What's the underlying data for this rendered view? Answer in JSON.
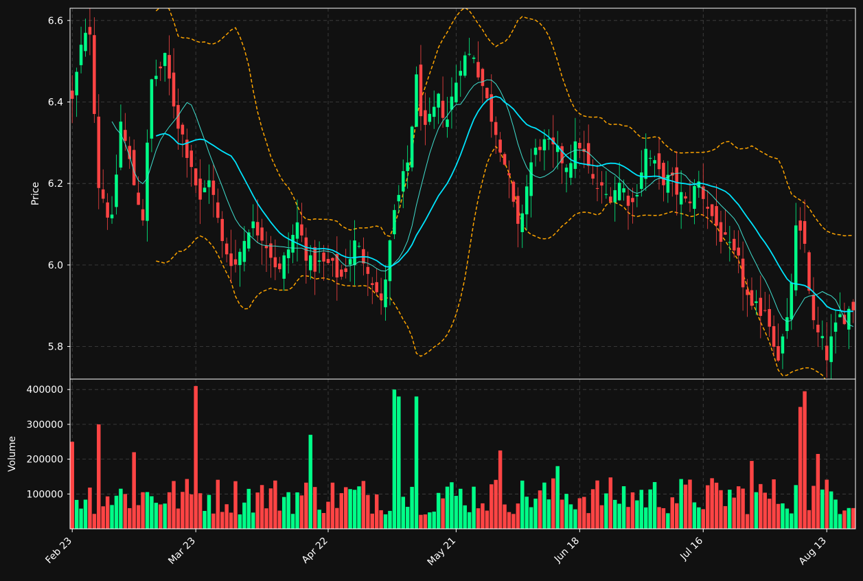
{
  "colors": {
    "background": "#111111",
    "up": "#00ff88",
    "down": "#ff4444",
    "sma_fast": "#40e0d0",
    "sma_slow": "#00e5ff",
    "bands": "#ffa500",
    "grid": "#444444",
    "axis": "#ffffff"
  },
  "chart_data": [
    {
      "type": "candlestick",
      "ylabel": "Price",
      "ylim": [
        5.72,
        6.63
      ],
      "yticks": [
        5.8,
        6.0,
        6.2,
        6.4,
        6.6
      ],
      "grid": true,
      "x": [
        "Feb 23",
        "Feb 24",
        "Feb 25",
        "Feb 26",
        "Feb 27",
        "Feb 28",
        "Mar 1",
        "Mar 2",
        "Mar 3",
        "Mar 4",
        "Mar 5",
        "Mar 6",
        "Mar 7",
        "Mar 8",
        "Mar 9",
        "Mar 10",
        "Mar 11",
        "Mar 12",
        "Mar 13",
        "Mar 14",
        "Mar 15",
        "Mar 16",
        "Mar 17",
        "Mar 18",
        "Mar 19",
        "Mar 20",
        "Mar 21",
        "Mar 22",
        "Mar 23",
        "Mar 24",
        "Mar 25",
        "Mar 26",
        "Mar 27",
        "Mar 28",
        "Mar 29",
        "Mar 30",
        "Mar 31",
        "Apr 1",
        "Apr 2",
        "Apr 3",
        "Apr 4",
        "Apr 5",
        "Apr 6",
        "Apr 7",
        "Apr 8",
        "Apr 9",
        "Apr 10",
        "Apr 11",
        "Apr 12",
        "Apr 13",
        "Apr 14",
        "Apr 15",
        "Apr 16",
        "Apr 17",
        "Apr 18",
        "Apr 19",
        "Apr 20",
        "Apr 21",
        "Apr 22",
        "Apr 23",
        "Apr 24",
        "Apr 25",
        "Apr 26",
        "Apr 27",
        "Apr 28",
        "Apr 29",
        "Apr 30",
        "May 1",
        "May 2",
        "May 3",
        "May 4",
        "May 5",
        "May 6",
        "May 7",
        "May 8",
        "May 9",
        "May 10",
        "May 11",
        "May 12",
        "May 13",
        "May 14",
        "May 15",
        "May 16",
        "May 17",
        "May 18",
        "May 19",
        "May 20",
        "May 21",
        "May 22",
        "May 23",
        "May 24",
        "May 25",
        "May 26",
        "May 27",
        "May 28",
        "May 29",
        "May 30",
        "May 31",
        "Jun 1",
        "Jun 2",
        "Jun 3",
        "Jun 4",
        "Jun 5",
        "Jun 6",
        "Jun 7",
        "Jun 8",
        "Jun 9",
        "Jun 10",
        "Jun 11",
        "Jun 12",
        "Jun 13",
        "Jun 14",
        "Jun 15",
        "Jun 16",
        "Jun 17",
        "Jun 18",
        "Jun 19",
        "Jun 20",
        "Jun 21",
        "Jun 22",
        "Jun 23",
        "Jun 24",
        "Jun 25",
        "Jun 26",
        "Jun 27",
        "Jun 28",
        "Jun 29",
        "Jun 30",
        "Jul 1",
        "Jul 2",
        "Jul 3",
        "Jul 4",
        "Jul 5",
        "Jul 6",
        "Jul 7",
        "Jul 8",
        "Jul 9",
        "Jul 10",
        "Jul 11",
        "Jul 12",
        "Jul 13",
        "Jul 14",
        "Jul 15",
        "Jul 16",
        "Jul 17",
        "Jul 18",
        "Jul 19",
        "Jul 20",
        "Jul 21",
        "Jul 22",
        "Jul 23",
        "Jul 24",
        "Jul 25",
        "Jul 26",
        "Jul 27",
        "Jul 28",
        "Jul 29",
        "Jul 30",
        "Jul 31",
        "Aug 1",
        "Aug 2",
        "Aug 3",
        "Aug 4",
        "Aug 5",
        "Aug 6",
        "Aug 7",
        "Aug 8",
        "Aug 9",
        "Aug 10",
        "Aug 11",
        "Aug 12",
        "Aug 13",
        "Aug 14",
        "Aug 15",
        "Aug 16",
        "Aug 17",
        "Aug 18",
        "Aug 19"
      ],
      "xticks": [
        "Feb 23",
        "Mar 23",
        "Apr 22",
        "May 21",
        "Jun 18",
        "Jul 16",
        "Aug 13"
      ],
      "anchors": [
        [
          "Feb 23",
          6.4
        ],
        [
          "Feb 25",
          6.53
        ],
        [
          "Feb 27",
          6.58
        ],
        [
          "Mar 1",
          6.2
        ],
        [
          "Mar 4",
          6.1
        ],
        [
          "Mar 6",
          6.35
        ],
        [
          "Mar 9",
          6.2
        ],
        [
          "Mar 11",
          6.12
        ],
        [
          "Mar 13",
          6.45
        ],
        [
          "Mar 16",
          6.5
        ],
        [
          "Mar 19",
          6.35
        ],
        [
          "Mar 22",
          6.25
        ],
        [
          "Mar 24",
          6.15
        ],
        [
          "Mar 26",
          6.22
        ],
        [
          "Mar 29",
          6.05
        ],
        [
          "Apr 1",
          6.0
        ],
        [
          "Apr 4",
          6.1
        ],
        [
          "Apr 7",
          6.08
        ],
        [
          "Apr 11",
          5.98
        ],
        [
          "Apr 15",
          6.1
        ],
        [
          "Apr 18",
          6.0
        ],
        [
          "Apr 22",
          6.0
        ],
        [
          "Apr 25",
          5.97
        ],
        [
          "Apr 28",
          6.05
        ],
        [
          "May 1",
          6.0
        ],
        [
          "May 4",
          5.9
        ],
        [
          "May 7",
          6.12
        ],
        [
          "May 10",
          6.25
        ],
        [
          "May 12",
          6.45
        ],
        [
          "May 14",
          6.32
        ],
        [
          "May 17",
          6.4
        ],
        [
          "May 19",
          6.36
        ],
        [
          "May 22",
          6.5
        ],
        [
          "May 25",
          6.52
        ],
        [
          "May 28",
          6.4
        ],
        [
          "May 31",
          6.3
        ],
        [
          "Jun 2",
          6.2
        ],
        [
          "Jun 4",
          6.08
        ],
        [
          "Jun 7",
          6.25
        ],
        [
          "Jun 9",
          6.3
        ],
        [
          "Jun 12",
          6.28
        ],
        [
          "Jun 15",
          6.25
        ],
        [
          "Jun 18",
          6.3
        ],
        [
          "Jun 21",
          6.2
        ],
        [
          "Jun 24",
          6.17
        ],
        [
          "Jun 27",
          6.2
        ],
        [
          "Jun 30",
          6.15
        ],
        [
          "Jul 3",
          6.28
        ],
        [
          "Jul 6",
          6.22
        ],
        [
          "Jul 9",
          6.2
        ],
        [
          "Jul 12",
          6.15
        ],
        [
          "Jul 15",
          6.2
        ],
        [
          "Jul 18",
          6.12
        ],
        [
          "Jul 21",
          6.05
        ],
        [
          "Jul 24",
          6.0
        ],
        [
          "Jul 27",
          5.88
        ],
        [
          "Jul 30",
          5.9
        ],
        [
          "Aug 2",
          5.78
        ],
        [
          "Aug 4",
          5.85
        ],
        [
          "Aug 6",
          6.08
        ],
        [
          "Aug 8",
          6.05
        ],
        [
          "Aug 10",
          5.85
        ],
        [
          "Aug 13",
          5.78
        ],
        [
          "Aug 16",
          5.87
        ],
        [
          "Aug 19",
          5.9
        ]
      ]
    },
    {
      "type": "bar",
      "ylabel": "Volume",
      "ylim": [
        0,
        430000
      ],
      "yticks": [
        100000,
        200000,
        300000,
        400000
      ],
      "grid": true,
      "peaks": [
        [
          "Feb 23",
          250000
        ],
        [
          "Mar 1",
          300000
        ],
        [
          "Mar 9",
          220000
        ],
        [
          "Mar 23",
          410000
        ],
        [
          "Apr 18",
          270000
        ],
        [
          "May 7",
          400000
        ],
        [
          "May 8",
          380000
        ],
        [
          "May 12",
          380000
        ],
        [
          "May 31",
          225000
        ],
        [
          "Jun 13",
          180000
        ],
        [
          "Jul 27",
          195000
        ],
        [
          "Aug 7",
          350000
        ],
        [
          "Aug 8",
          395000
        ],
        [
          "Aug 11",
          215000
        ]
      ]
    }
  ]
}
